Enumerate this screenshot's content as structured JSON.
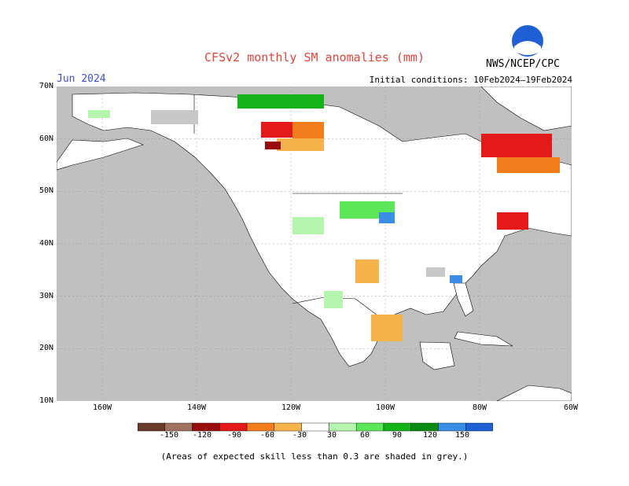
{
  "title": "CFSv2 monthly SM anomalies (mm)",
  "valid_month": "Jun 2024",
  "initial_conditions": "Initial conditions: 10Feb2024–19Feb2024",
  "agency": "NWS/NCEP/CPC",
  "logo_text": "NOAA",
  "note": "(Areas of expected skill less than 0.3 are shaded in grey.)",
  "lat_labels": [
    "70N",
    "60N",
    "50N",
    "40N",
    "30N",
    "20N",
    "10N"
  ],
  "lon_labels": [
    "160W",
    "140W",
    "120W",
    "100W",
    "80W",
    "60W"
  ],
  "colorbar": {
    "ticks": [
      "-150",
      "-120",
      "-90",
      "-60",
      "-30",
      "30",
      "60",
      "90",
      "120",
      "150"
    ],
    "colors": [
      "#6b3a2a",
      "#a07060",
      "#9a0b0b",
      "#e41a1a",
      "#f27d1c",
      "#f7b34b",
      "#ffffff",
      "#b6f5b0",
      "#5ee65a",
      "#16b21a",
      "#0a8a10",
      "#3a8ee6",
      "#1f5fd6"
    ]
  },
  "colors": {
    "land": "#ffffff",
    "ocean": "#c0c0c0",
    "low_skill": "#c8c8c8"
  }
}
